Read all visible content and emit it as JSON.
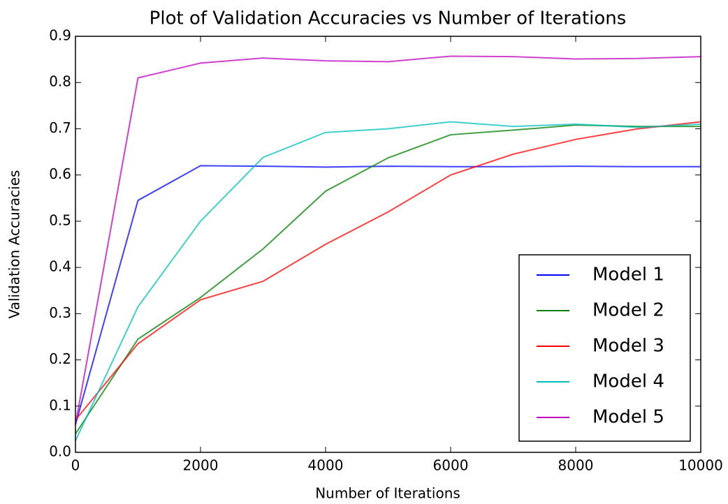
{
  "chart_data": {
    "type": "line",
    "title": "Plot of Validation Accuracies vs Number of Iterations",
    "xlabel": "Number of Iterations",
    "ylabel": "Validation Accuracies",
    "x": [
      0,
      1000,
      2000,
      3000,
      4000,
      5000,
      6000,
      7000,
      8000,
      9000,
      10000
    ],
    "series": [
      {
        "name": "Model 1",
        "color": "#0000ff",
        "values": [
          0.06,
          0.545,
          0.62,
          0.619,
          0.617,
          0.619,
          0.618,
          0.618,
          0.619,
          0.618,
          0.618
        ]
      },
      {
        "name": "Model 2",
        "color": "#008000",
        "values": [
          0.04,
          0.245,
          0.335,
          0.44,
          0.565,
          0.637,
          0.687,
          0.697,
          0.708,
          0.705,
          0.705
        ]
      },
      {
        "name": "Model 3",
        "color": "#ff0000",
        "values": [
          0.07,
          0.235,
          0.33,
          0.37,
          0.45,
          0.52,
          0.6,
          0.645,
          0.677,
          0.7,
          0.715
        ]
      },
      {
        "name": "Model 4",
        "color": "#00bfbf",
        "values": [
          0.025,
          0.315,
          0.5,
          0.638,
          0.692,
          0.7,
          0.715,
          0.705,
          0.71,
          0.703,
          0.71
        ]
      },
      {
        "name": "Model 5",
        "color": "#bf00bf",
        "values": [
          0.06,
          0.81,
          0.842,
          0.853,
          0.847,
          0.845,
          0.857,
          0.856,
          0.851,
          0.852,
          0.856
        ]
      }
    ],
    "xlim": [
      0,
      10000
    ],
    "xticks": [
      0,
      2000,
      4000,
      6000,
      8000,
      10000
    ],
    "ylim": [
      0,
      0.9
    ],
    "yticks": [
      {
        "value": 0,
        "label": "0.0"
      },
      0.1,
      0.2,
      0.3,
      0.4,
      0.5,
      0.6,
      0.7,
      0.8,
      0.9
    ],
    "legend": "lower right",
    "grid": false
  }
}
